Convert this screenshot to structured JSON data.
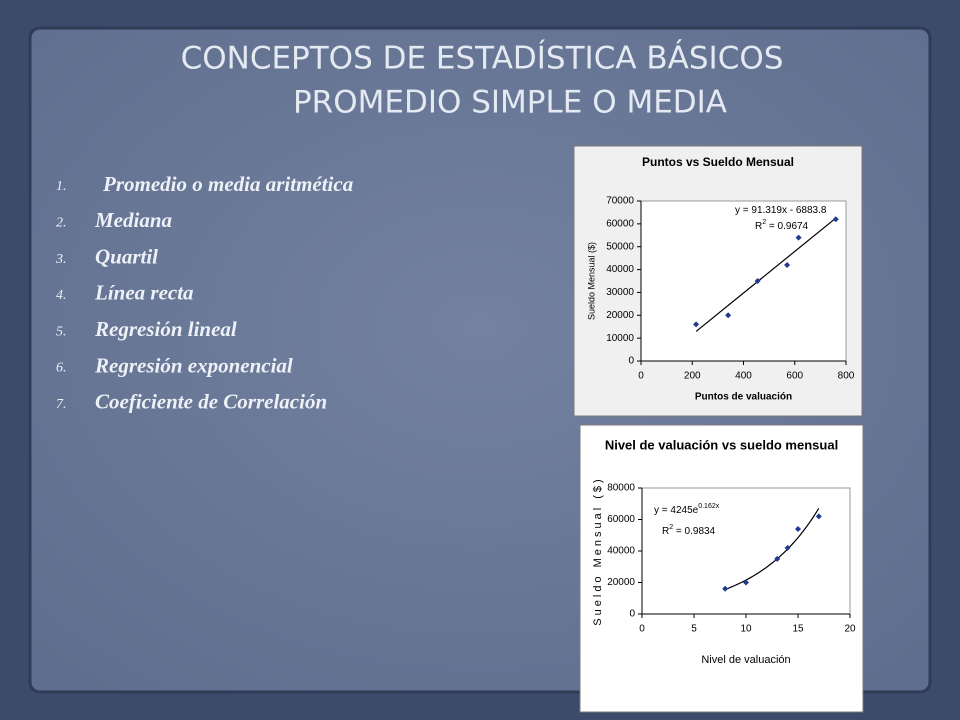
{
  "slide": {
    "title_lines": [
      "CONCEPTOS DE ESTADÍSTICA BÁSICOS",
      "PROMEDIO SIMPLE O MEDIA"
    ],
    "items": [
      {
        "number": "1.",
        "text": "Promedio o media aritmética"
      },
      {
        "number": "2.",
        "text": "Mediana"
      },
      {
        "number": "3.",
        "text": "Quartil"
      },
      {
        "number": "4.",
        "text": "Línea recta"
      },
      {
        "number": "5.",
        "text": "Regresión lineal"
      },
      {
        "number": "6.",
        "text": "Regresión exponencial"
      },
      {
        "number": "7.",
        "text": "Coeficiente de Correlación"
      }
    ]
  },
  "chart_data": [
    {
      "type": "scatter",
      "title": "Puntos vs Sueldo Mensual",
      "x_label": "Puntos de valuación",
      "y_label": "Sueldo Mensual ($)",
      "x": [
        215,
        340,
        455,
        570,
        615,
        760
      ],
      "values": [
        16000,
        20000,
        35000,
        42000,
        54000,
        62000
      ],
      "color": "#1f3a93",
      "trendline": "linear",
      "trend_color": "#000000",
      "xlim": [
        0,
        800
      ],
      "xticks": [
        0,
        200,
        400,
        600,
        800
      ],
      "ylim": [
        0,
        70000
      ],
      "yticks": [
        0,
        10000,
        20000,
        30000,
        40000,
        50000,
        60000,
        70000
      ],
      "annotations": [
        [
          {
            "text": "y = 91.319x - 6883.8"
          }
        ],
        [
          {
            "text": "R"
          },
          {
            "text": "2",
            "sup": true
          },
          {
            "text": " = 0.9674"
          }
        ]
      ]
    },
    {
      "type": "scatter",
      "title": "Nivel de valuación vs sueldo mensual",
      "x_label": "Nivel de valuación",
      "y_label": "Sueldo Mensual ($)",
      "x": [
        8,
        10,
        13,
        14,
        15,
        17
      ],
      "values": [
        16000,
        20000,
        35000,
        42000,
        54000,
        62000
      ],
      "color": "#1f3a93",
      "trendline": "exponential",
      "trend_color": "#000000",
      "xlim": [
        0,
        20
      ],
      "xticks": [
        0,
        5,
        10,
        15,
        20
      ],
      "ylim": [
        0,
        80000
      ],
      "yticks": [
        0,
        20000,
        40000,
        60000,
        80000
      ],
      "annotations": [
        [
          {
            "text": "y = 4245e"
          },
          {
            "text": "0.162x",
            "sup": true
          }
        ],
        [
          {
            "text": "R"
          },
          {
            "text": "2",
            "sup": true
          },
          {
            "text": " = 0.9834"
          }
        ]
      ]
    }
  ]
}
